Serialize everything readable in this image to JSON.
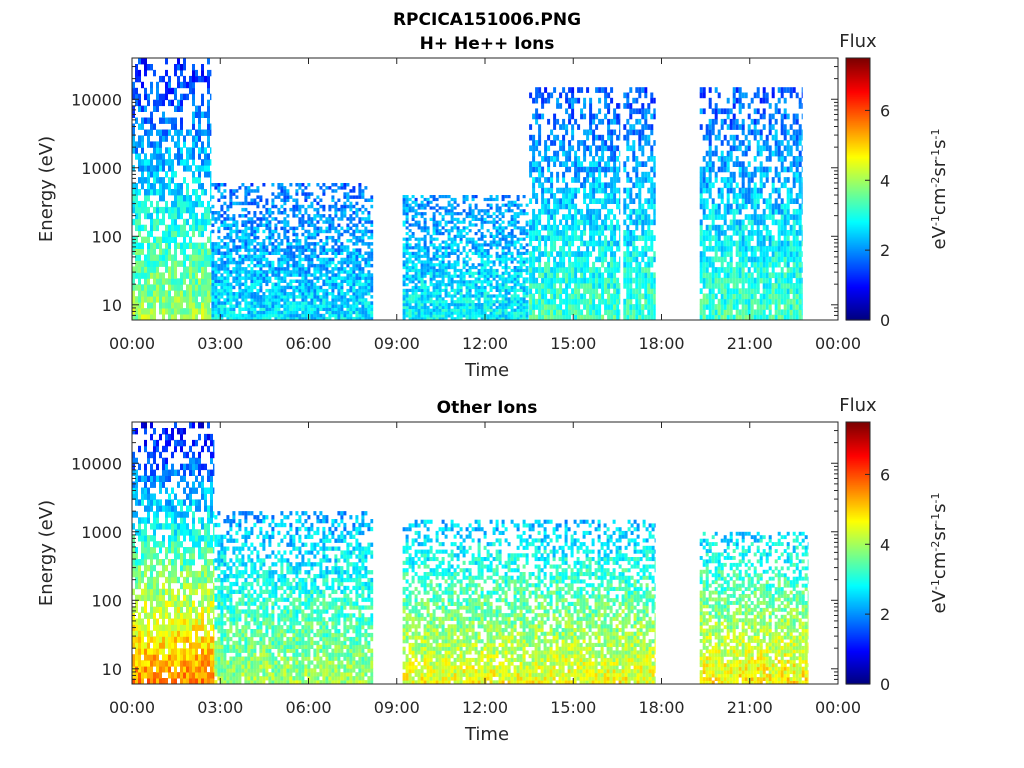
{
  "figure": {
    "filename": "RPCICA151006.PNG"
  },
  "chart_data": [
    {
      "type": "heatmap",
      "title": "H+ He++ Ions",
      "xlabel": "Time",
      "ylabel": "Energy (eV)",
      "x_ticks": [
        "00:00",
        "03:00",
        "06:00",
        "09:00",
        "12:00",
        "15:00",
        "18:00",
        "21:00",
        "00:00"
      ],
      "x_range_hours": [
        0,
        24
      ],
      "y_scale": "log",
      "y_ticks": [
        "10",
        "100",
        "1000",
        "10000"
      ],
      "y_range": [
        6,
        40000
      ],
      "colorbar": {
        "label": "Flux",
        "units": "eV-1cm-2sr-1s-1",
        "ticks": [
          "0",
          "2",
          "4",
          "6"
        ],
        "range": [
          0,
          7.5
        ],
        "colormap": "jet"
      },
      "data_gaps_hours": [
        [
          8.2,
          9.2
        ],
        [
          16.6,
          16.7
        ],
        [
          17.8,
          19.3
        ],
        [
          22.8,
          24
        ]
      ],
      "intervals": [
        {
          "start_h": 0.0,
          "end_h": 2.7,
          "emin": 6,
          "emax": 40000,
          "flux_low_energy": 4.0,
          "flux_high_energy": 1.2
        },
        {
          "start_h": 2.7,
          "end_h": 8.2,
          "emin": 6,
          "emax": 600,
          "flux_low_energy": 2.6,
          "flux_high_energy": 1.8
        },
        {
          "start_h": 9.2,
          "end_h": 13.5,
          "emin": 6,
          "emax": 400,
          "flux_low_energy": 2.8,
          "flux_high_energy": 2.0
        },
        {
          "start_h": 13.5,
          "end_h": 16.6,
          "emin": 6,
          "emax": 15000,
          "flux_low_energy": 3.3,
          "flux_high_energy": 1.6
        },
        {
          "start_h": 16.7,
          "end_h": 17.8,
          "emin": 6,
          "emax": 15000,
          "flux_low_energy": 3.3,
          "flux_high_energy": 1.6
        },
        {
          "start_h": 19.3,
          "end_h": 22.8,
          "emin": 6,
          "emax": 15000,
          "flux_low_energy": 3.3,
          "flux_high_energy": 1.6
        }
      ]
    },
    {
      "type": "heatmap",
      "title": "Other Ions",
      "xlabel": "Time",
      "ylabel": "Energy (eV)",
      "x_ticks": [
        "00:00",
        "03:00",
        "06:00",
        "09:00",
        "12:00",
        "15:00",
        "18:00",
        "21:00",
        "00:00"
      ],
      "x_range_hours": [
        0,
        24
      ],
      "y_scale": "log",
      "y_ticks": [
        "10",
        "100",
        "1000",
        "10000"
      ],
      "y_range": [
        6,
        40000
      ],
      "colorbar": {
        "label": "Flux",
        "units": "eV-1cm-2sr-1s-1",
        "ticks": [
          "0",
          "2",
          "4",
          "6"
        ],
        "range": [
          0,
          7.5
        ],
        "colormap": "jet"
      },
      "data_gaps_hours": [
        [
          8.2,
          9.2
        ],
        [
          17.8,
          19.3
        ],
        [
          23.0,
          24
        ]
      ],
      "intervals": [
        {
          "start_h": 0.0,
          "end_h": 2.8,
          "emin": 6,
          "emax": 40000,
          "flux_low_energy": 5.6,
          "flux_high_energy": 1.0
        },
        {
          "start_h": 2.8,
          "end_h": 8.2,
          "emin": 6,
          "emax": 2000,
          "flux_low_energy": 4.0,
          "flux_high_energy": 2.2
        },
        {
          "start_h": 9.2,
          "end_h": 17.8,
          "emin": 6,
          "emax": 1500,
          "flux_low_energy": 4.6,
          "flux_high_energy": 2.4
        },
        {
          "start_h": 19.3,
          "end_h": 23.0,
          "emin": 6,
          "emax": 1000,
          "flux_low_energy": 4.8,
          "flux_high_energy": 2.6
        }
      ]
    }
  ]
}
